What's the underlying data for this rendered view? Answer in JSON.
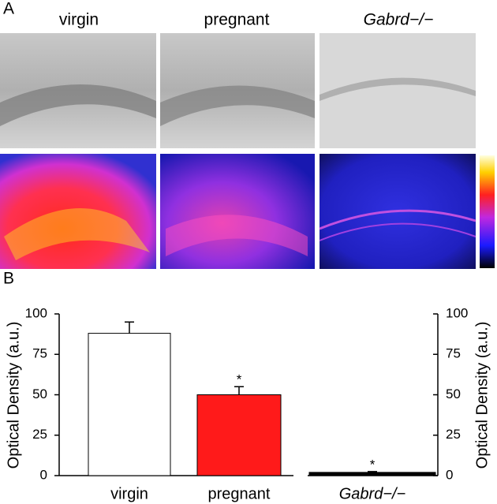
{
  "panel_a": {
    "label": "A",
    "columns": [
      "virgin",
      "pregnant",
      "Gabrd−/−"
    ]
  },
  "panel_b_label": "B",
  "chart_data": {
    "type": "bar",
    "categories": [
      "virgin",
      "pregnant",
      "Gabrd−/−"
    ],
    "values": [
      88,
      50,
      2
    ],
    "errors": [
      7,
      5,
      0.5
    ],
    "colors": [
      "#ffffff",
      "#ff1a1a",
      "#000000"
    ],
    "annotations": [
      null,
      "*",
      "*"
    ],
    "ylabel": "Optical Density (a.u.)",
    "y2label": "Optical Density (a.u.)",
    "ylim": [
      0,
      100
    ],
    "yticks": [
      0,
      25,
      50,
      75,
      100
    ],
    "y2lim": [
      0,
      100
    ],
    "y2ticks": [
      0,
      25,
      50,
      75,
      100
    ]
  }
}
